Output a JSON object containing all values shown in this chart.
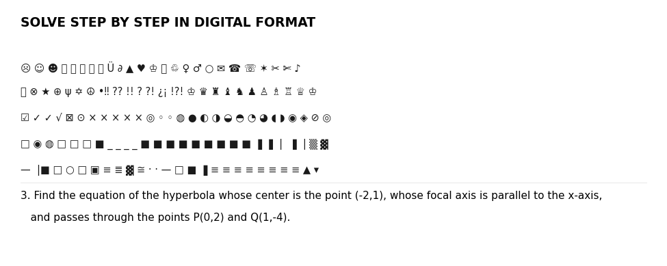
{
  "title": "SOLVE STEP BY STEP IN DIGITAL FORMAT",
  "problem_line1": "3. Find the equation of the hyperbola whose center is the point (-2,1), whose focal axis is parallel to the x-axis,",
  "problem_line2": "   and passes through the points P(0,2) and Q(1,-4).",
  "bg_color": "#ffffff",
  "title_color": "#000000",
  "symbol_color": "#1a1a1a",
  "text_color": "#000000",
  "title_fontsize": 13.5,
  "symbol_fontsize": 10.5,
  "problem_fontsize": 11,
  "symbol_y_positions": [
    300,
    262,
    224,
    186,
    148
  ]
}
